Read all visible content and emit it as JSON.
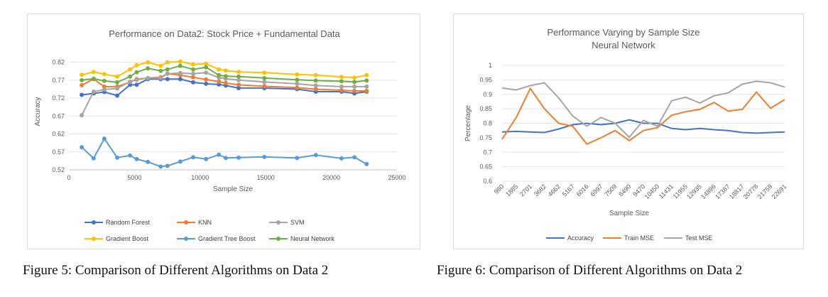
{
  "figures": [
    {
      "caption": "Figure 5: Comparison of Different Algorithms on Data 2",
      "chart_data": {
        "type": "line",
        "title": "Performance on Data2: Stock Price + Fundamental Data",
        "xlabel": "Sample Size",
        "ylabel": "Accuracy",
        "xlim": [
          0,
          25000
        ],
        "ylim": [
          0.52,
          0.845
        ],
        "x_ticks": [
          0,
          5000,
          10000,
          15000,
          20000,
          25000
        ],
        "x_tick_labels": [
          "0",
          "5000",
          "10000",
          "15000",
          "20000",
          "25000"
        ],
        "y_ticks": [
          0.52,
          0.57,
          0.62,
          0.67,
          0.72,
          0.77,
          0.82
        ],
        "y_tick_labels": [
          "0.52",
          "0.57",
          "0.62",
          "0.67",
          "0.72",
          "0.77",
          "0.82"
        ],
        "grid": "horizontal",
        "legend_position": "bottom",
        "markers": true,
        "x": [
          980,
          1885,
          2701,
          3682,
          4662,
          5167,
          6016,
          6997,
          7509,
          8490,
          9470,
          10450,
          11431,
          11955,
          12935,
          14896,
          17387,
          18817,
          20778,
          21759,
          22691
        ],
        "series": [
          {
            "name": "Random Forest",
            "color": "#4472c4",
            "values": [
              0.729,
              0.733,
              0.737,
              0.727,
              0.757,
              0.757,
              0.773,
              0.773,
              0.773,
              0.773,
              0.764,
              0.76,
              0.758,
              0.755,
              0.748,
              0.748,
              0.745,
              0.738,
              0.738,
              0.733,
              0.738
            ]
          },
          {
            "name": "KNN",
            "color": "#ed7d31",
            "values": [
              0.756,
              0.773,
              0.752,
              0.752,
              0.765,
              0.773,
              0.776,
              0.778,
              0.788,
              0.784,
              0.778,
              0.772,
              0.766,
              0.762,
              0.757,
              0.753,
              0.749,
              0.745,
              0.742,
              0.74,
              0.74
            ]
          },
          {
            "name": "SVM",
            "color": "#a5a5a5",
            "values": [
              0.672,
              0.738,
              0.744,
              0.747,
              0.766,
              0.771,
              0.776,
              0.776,
              0.788,
              0.79,
              0.788,
              0.791,
              0.777,
              0.774,
              0.77,
              0.765,
              0.76,
              0.755,
              0.752,
              0.752,
              0.752
            ]
          },
          {
            "name": "Gradient Boost",
            "color": "#ffc000",
            "values": [
              0.785,
              0.793,
              0.787,
              0.78,
              0.8,
              0.812,
              0.82,
              0.81,
              0.82,
              0.822,
              0.814,
              0.816,
              0.8,
              0.797,
              0.793,
              0.791,
              0.786,
              0.784,
              0.779,
              0.777,
              0.784
            ]
          },
          {
            "name": "Gradient Tree Boost",
            "color": "#5b9bd5",
            "values": [
              0.583,
              0.552,
              0.607,
              0.554,
              0.56,
              0.55,
              0.542,
              0.529,
              0.531,
              0.543,
              0.555,
              0.55,
              0.562,
              0.553,
              0.554,
              0.556,
              0.553,
              0.561,
              0.552,
              0.555,
              0.536
            ]
          },
          {
            "name": "Neural Network",
            "color": "#70ad47",
            "values": [
              0.77,
              0.774,
              0.768,
              0.764,
              0.78,
              0.792,
              0.803,
              0.796,
              0.8,
              0.81,
              0.8,
              0.806,
              0.784,
              0.781,
              0.78,
              0.776,
              0.771,
              0.769,
              0.767,
              0.765,
              0.769
            ]
          }
        ]
      }
    },
    {
      "caption": "Figure 6: Comparison of Different Algorithms on Data 2",
      "chart_data": {
        "type": "line",
        "title": "Performance Varying by Sample Size",
        "subtitle": "Neural Network",
        "xlabel": "Sample Size",
        "ylabel": "Percentage",
        "ylim": [
          0.6,
          1
        ],
        "y_ticks": [
          0.6,
          0.65,
          0.7,
          0.75,
          0.8,
          0.85,
          0.9,
          0.95,
          1
        ],
        "y_tick_labels": [
          "0.6",
          "0.65",
          "0.7",
          "0.75",
          "0.8",
          "0.85",
          "0.9",
          "0.95",
          "1"
        ],
        "grid": "horizontal",
        "legend_position": "bottom",
        "markers": false,
        "categories": [
          "980",
          "1885",
          "2701",
          "3682",
          "4662",
          "5167",
          "6016",
          "6997",
          "7509",
          "8490",
          "9470",
          "10450",
          "11431",
          "11955",
          "12935",
          "14896",
          "17387",
          "18817",
          "20778",
          "21759",
          "22691"
        ],
        "series": [
          {
            "name": "Accuracy",
            "color": "#4472c4",
            "values": [
              0.77,
              0.772,
              0.77,
              0.768,
              0.78,
              0.795,
              0.8,
              0.795,
              0.8,
              0.812,
              0.8,
              0.8,
              0.782,
              0.778,
              0.782,
              0.778,
              0.775,
              0.768,
              0.766,
              0.768,
              0.77
            ]
          },
          {
            "name": "Train MSE",
            "color": "#ed7d31",
            "values": [
              0.745,
              0.82,
              0.92,
              0.85,
              0.8,
              0.79,
              0.728,
              0.75,
              0.775,
              0.74,
              0.775,
              0.785,
              0.828,
              0.84,
              0.848,
              0.872,
              0.842,
              0.848,
              0.908,
              0.852,
              0.882
            ]
          },
          {
            "name": "Test MSE",
            "color": "#a5a5a5",
            "values": [
              0.922,
              0.915,
              0.93,
              0.94,
              0.888,
              0.825,
              0.79,
              0.82,
              0.8,
              0.752,
              0.81,
              0.79,
              0.878,
              0.89,
              0.87,
              0.895,
              0.905,
              0.935,
              0.945,
              0.94,
              0.925
            ]
          }
        ]
      }
    }
  ]
}
